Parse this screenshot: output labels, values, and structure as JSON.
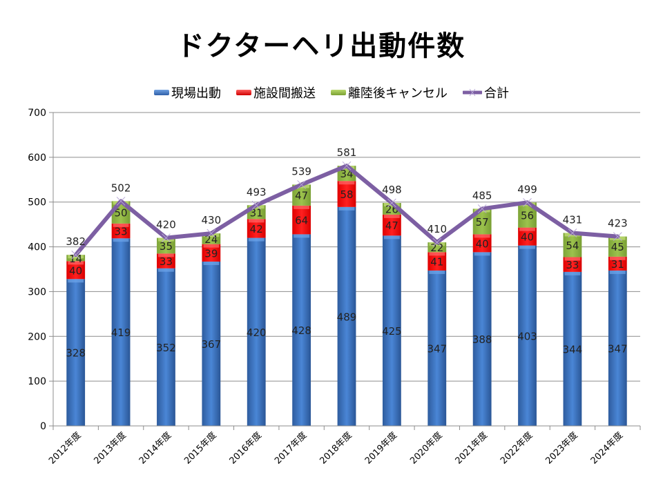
{
  "chart_data": {
    "type": "bar",
    "stacked": true,
    "title": "ドクターヘリ出動件数",
    "xlabel": "",
    "ylabel": "",
    "ylim": [
      0,
      700
    ],
    "yticks": [
      0,
      100,
      200,
      300,
      400,
      500,
      600,
      700
    ],
    "grid": true,
    "legend_position": "top",
    "categories": [
      "2012年度",
      "2013年度",
      "2014年度",
      "2015年度",
      "2016年度",
      "2017年度",
      "2018年度",
      "2019年度",
      "2020年度",
      "2021年度",
      "2022年度",
      "2023年度",
      "2024年度"
    ],
    "series": [
      {
        "name": "現場出動",
        "kind": "bar",
        "color": "#3f77c4",
        "values": [
          328,
          419,
          352,
          367,
          420,
          428,
          489,
          425,
          347,
          388,
          403,
          344,
          347
        ]
      },
      {
        "name": "施設間搬送",
        "kind": "bar",
        "color": "#ff1a1a",
        "values": [
          40,
          33,
          33,
          39,
          42,
          64,
          58,
          47,
          41,
          40,
          40,
          33,
          31
        ]
      },
      {
        "name": "離陸後キャンセル",
        "kind": "bar",
        "color": "#8fb541",
        "values": [
          14,
          50,
          35,
          24,
          31,
          47,
          34,
          26,
          22,
          57,
          56,
          54,
          45
        ]
      },
      {
        "name": "合計",
        "kind": "line",
        "color": "#7d5fa3",
        "values": [
          382,
          502,
          420,
          430,
          493,
          539,
          581,
          498,
          410,
          485,
          499,
          431,
          423
        ]
      }
    ]
  }
}
